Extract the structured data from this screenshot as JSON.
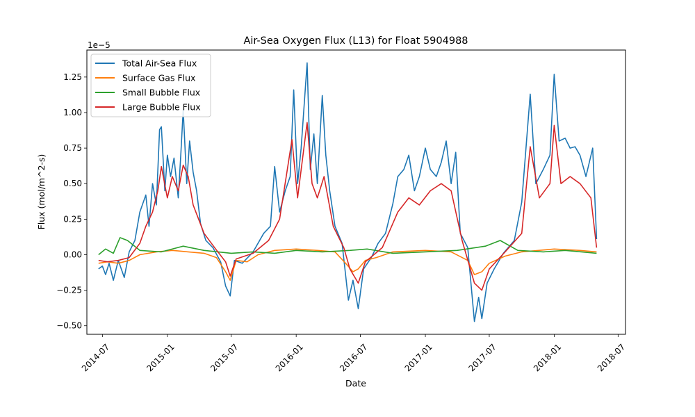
{
  "chart_data": {
    "type": "line",
    "title": "Air-Sea Oxygen Flux (L13) for Float 5904988",
    "xlabel": "Date",
    "ylabel": "Flux (mol/m^2-s)",
    "y_offset_label": "1e−5",
    "ylim": [
      -0.56,
      1.44
    ],
    "xlim": [
      "2014-05-18",
      "2018-07-22"
    ],
    "x_ticks": [
      "2014-07-01",
      "2015-01-01",
      "2015-07-01",
      "2016-01-01",
      "2016-07-01",
      "2017-01-01",
      "2017-07-01",
      "2018-01-01",
      "2018-07-01"
    ],
    "x_tick_labels": [
      "2014-07",
      "2015-01",
      "2015-07",
      "2016-01",
      "2016-07",
      "2017-01",
      "2017-07",
      "2018-01",
      "2018-07"
    ],
    "y_ticks": [
      -0.5,
      -0.25,
      0.0,
      0.25,
      0.5,
      0.75,
      1.0,
      1.25
    ],
    "y_tick_labels": [
      "−0.50",
      "−0.25",
      "0.00",
      "0.25",
      "0.50",
      "0.75",
      "1.00",
      "1.25"
    ],
    "legend_position": "upper-left",
    "grid": false,
    "series": [
      {
        "name": "Total Air-Sea Flux",
        "color": "#1f77b4",
        "points": [
          [
            "2014-06-20",
            -0.1
          ],
          [
            "2014-07-01",
            -0.08
          ],
          [
            "2014-07-10",
            -0.14
          ],
          [
            "2014-07-20",
            -0.06
          ],
          [
            "2014-08-01",
            -0.18
          ],
          [
            "2014-08-15",
            -0.04
          ],
          [
            "2014-09-01",
            -0.16
          ],
          [
            "2014-09-15",
            0.02
          ],
          [
            "2014-10-01",
            0.1
          ],
          [
            "2014-10-15",
            0.3
          ],
          [
            "2014-11-01",
            0.42
          ],
          [
            "2014-11-10",
            0.2
          ],
          [
            "2014-11-20",
            0.5
          ],
          [
            "2014-12-01",
            0.35
          ],
          [
            "2014-12-10",
            0.88
          ],
          [
            "2014-12-15",
            0.9
          ],
          [
            "2014-12-25",
            0.45
          ],
          [
            "2015-01-01",
            0.7
          ],
          [
            "2015-01-10",
            0.55
          ],
          [
            "2015-01-20",
            0.68
          ],
          [
            "2015-02-01",
            0.4
          ],
          [
            "2015-02-08",
            0.7
          ],
          [
            "2015-02-15",
            1.02
          ],
          [
            "2015-02-25",
            0.5
          ],
          [
            "2015-03-05",
            0.8
          ],
          [
            "2015-03-15",
            0.58
          ],
          [
            "2015-03-25",
            0.45
          ],
          [
            "2015-04-05",
            0.22
          ],
          [
            "2015-04-20",
            0.1
          ],
          [
            "2015-05-10",
            0.05
          ],
          [
            "2015-06-01",
            -0.05
          ],
          [
            "2015-06-15",
            -0.22
          ],
          [
            "2015-06-28",
            -0.29
          ],
          [
            "2015-07-10",
            -0.04
          ],
          [
            "2015-08-01",
            -0.06
          ],
          [
            "2015-09-01",
            0.02
          ],
          [
            "2015-10-01",
            0.15
          ],
          [
            "2015-10-20",
            0.2
          ],
          [
            "2015-11-01",
            0.62
          ],
          [
            "2015-11-15",
            0.3
          ],
          [
            "2015-12-01",
            0.45
          ],
          [
            "2015-12-15",
            0.55
          ],
          [
            "2015-12-25",
            1.16
          ],
          [
            "2016-01-05",
            0.5
          ],
          [
            "2016-01-15",
            0.75
          ],
          [
            "2016-02-01",
            1.35
          ],
          [
            "2016-02-10",
            0.6
          ],
          [
            "2016-02-20",
            0.85
          ],
          [
            "2016-03-01",
            0.5
          ],
          [
            "2016-03-15",
            1.12
          ],
          [
            "2016-03-25",
            0.7
          ],
          [
            "2016-04-05",
            0.45
          ],
          [
            "2016-04-20",
            0.2
          ],
          [
            "2016-05-10",
            0.08
          ],
          [
            "2016-05-28",
            -0.32
          ],
          [
            "2016-06-10",
            -0.18
          ],
          [
            "2016-06-25",
            -0.38
          ],
          [
            "2016-07-10",
            -0.1
          ],
          [
            "2016-08-01",
            -0.02
          ],
          [
            "2016-08-20",
            0.08
          ],
          [
            "2016-09-10",
            0.15
          ],
          [
            "2016-10-01",
            0.36
          ],
          [
            "2016-10-15",
            0.55
          ],
          [
            "2016-11-01",
            0.6
          ],
          [
            "2016-11-15",
            0.7
          ],
          [
            "2016-12-01",
            0.45
          ],
          [
            "2016-12-15",
            0.55
          ],
          [
            "2017-01-01",
            0.75
          ],
          [
            "2017-01-15",
            0.6
          ],
          [
            "2017-02-01",
            0.55
          ],
          [
            "2017-02-15",
            0.65
          ],
          [
            "2017-03-01",
            0.8
          ],
          [
            "2017-03-15",
            0.5
          ],
          [
            "2017-03-28",
            0.72
          ],
          [
            "2017-04-10",
            0.15
          ],
          [
            "2017-05-01",
            0.05
          ],
          [
            "2017-05-20",
            -0.47
          ],
          [
            "2017-06-01",
            -0.3
          ],
          [
            "2017-06-10",
            -0.45
          ],
          [
            "2017-06-25",
            -0.2
          ],
          [
            "2017-07-15",
            -0.1
          ],
          [
            "2017-08-10",
            0.01
          ],
          [
            "2017-09-10",
            0.1
          ],
          [
            "2017-10-01",
            0.37
          ],
          [
            "2017-10-25",
            1.13
          ],
          [
            "2017-11-10",
            0.5
          ],
          [
            "2017-12-01",
            0.6
          ],
          [
            "2017-12-20",
            0.7
          ],
          [
            "2018-01-01",
            1.27
          ],
          [
            "2018-01-15",
            0.8
          ],
          [
            "2018-02-01",
            0.82
          ],
          [
            "2018-02-15",
            0.75
          ],
          [
            "2018-03-01",
            0.76
          ],
          [
            "2018-03-15",
            0.7
          ],
          [
            "2018-04-01",
            0.55
          ],
          [
            "2018-04-20",
            0.75
          ],
          [
            "2018-05-01",
            0.11
          ]
        ]
      },
      {
        "name": "Surface Gas Flux",
        "color": "#ff7f0e",
        "points": [
          [
            "2014-06-20",
            -0.06
          ],
          [
            "2014-07-15",
            -0.05
          ],
          [
            "2014-08-15",
            -0.06
          ],
          [
            "2014-09-15",
            -0.04
          ],
          [
            "2014-10-15",
            0.0
          ],
          [
            "2014-12-01",
            0.02
          ],
          [
            "2015-01-15",
            0.03
          ],
          [
            "2015-03-01",
            0.02
          ],
          [
            "2015-04-15",
            0.01
          ],
          [
            "2015-05-20",
            -0.02
          ],
          [
            "2015-06-15",
            -0.12
          ],
          [
            "2015-06-28",
            -0.18
          ],
          [
            "2015-07-15",
            -0.04
          ],
          [
            "2015-08-15",
            -0.05
          ],
          [
            "2015-09-15",
            0.0
          ],
          [
            "2015-11-01",
            0.03
          ],
          [
            "2016-01-01",
            0.04
          ],
          [
            "2016-03-01",
            0.03
          ],
          [
            "2016-04-20",
            0.02
          ],
          [
            "2016-05-20",
            -0.06
          ],
          [
            "2016-06-10",
            -0.12
          ],
          [
            "2016-06-25",
            -0.1
          ],
          [
            "2016-07-15",
            -0.04
          ],
          [
            "2016-08-15",
            -0.02
          ],
          [
            "2016-10-01",
            0.02
          ],
          [
            "2017-01-01",
            0.03
          ],
          [
            "2017-03-15",
            0.02
          ],
          [
            "2017-05-01",
            -0.04
          ],
          [
            "2017-05-20",
            -0.14
          ],
          [
            "2017-06-10",
            -0.12
          ],
          [
            "2017-07-01",
            -0.06
          ],
          [
            "2017-08-15",
            -0.01
          ],
          [
            "2017-10-01",
            0.02
          ],
          [
            "2018-01-01",
            0.04
          ],
          [
            "2018-03-15",
            0.03
          ],
          [
            "2018-05-01",
            0.02
          ]
        ]
      },
      {
        "name": "Small Bubble Flux",
        "color": "#2ca02c",
        "points": [
          [
            "2014-06-20",
            0.0
          ],
          [
            "2014-07-10",
            0.04
          ],
          [
            "2014-08-01",
            0.01
          ],
          [
            "2014-08-20",
            0.12
          ],
          [
            "2014-09-10",
            0.1
          ],
          [
            "2014-10-15",
            0.03
          ],
          [
            "2014-12-15",
            0.02
          ],
          [
            "2015-02-15",
            0.06
          ],
          [
            "2015-04-15",
            0.03
          ],
          [
            "2015-07-01",
            0.01
          ],
          [
            "2015-09-01",
            0.02
          ],
          [
            "2015-11-01",
            0.01
          ],
          [
            "2016-01-01",
            0.03
          ],
          [
            "2016-03-15",
            0.02
          ],
          [
            "2016-06-01",
            0.03
          ],
          [
            "2016-07-20",
            0.04
          ],
          [
            "2016-10-01",
            0.01
          ],
          [
            "2017-01-01",
            0.02
          ],
          [
            "2017-04-01",
            0.03
          ],
          [
            "2017-06-20",
            0.06
          ],
          [
            "2017-08-01",
            0.1
          ],
          [
            "2017-09-20",
            0.03
          ],
          [
            "2017-12-01",
            0.02
          ],
          [
            "2018-02-01",
            0.03
          ],
          [
            "2018-05-01",
            0.01
          ]
        ]
      },
      {
        "name": "Large Bubble Flux",
        "color": "#d62728",
        "points": [
          [
            "2014-06-20",
            -0.04
          ],
          [
            "2014-07-15",
            -0.05
          ],
          [
            "2014-08-15",
            -0.04
          ],
          [
            "2014-09-15",
            -0.02
          ],
          [
            "2014-10-15",
            0.08
          ],
          [
            "2014-11-01",
            0.2
          ],
          [
            "2014-11-20",
            0.3
          ],
          [
            "2014-12-05",
            0.45
          ],
          [
            "2014-12-15",
            0.62
          ],
          [
            "2015-01-01",
            0.4
          ],
          [
            "2015-01-15",
            0.55
          ],
          [
            "2015-02-01",
            0.45
          ],
          [
            "2015-02-15",
            0.63
          ],
          [
            "2015-03-01",
            0.55
          ],
          [
            "2015-03-15",
            0.35
          ],
          [
            "2015-04-15",
            0.15
          ],
          [
            "2015-05-15",
            0.05
          ],
          [
            "2015-06-15",
            -0.05
          ],
          [
            "2015-06-28",
            -0.15
          ],
          [
            "2015-07-15",
            -0.03
          ],
          [
            "2015-09-01",
            0.01
          ],
          [
            "2015-10-15",
            0.1
          ],
          [
            "2015-11-15",
            0.25
          ],
          [
            "2015-12-20",
            0.81
          ],
          [
            "2016-01-05",
            0.4
          ],
          [
            "2016-02-01",
            0.93
          ],
          [
            "2016-02-15",
            0.5
          ],
          [
            "2016-03-01",
            0.4
          ],
          [
            "2016-03-20",
            0.55
          ],
          [
            "2016-04-15",
            0.2
          ],
          [
            "2016-05-15",
            0.05
          ],
          [
            "2016-06-01",
            -0.1
          ],
          [
            "2016-06-25",
            -0.2
          ],
          [
            "2016-07-15",
            -0.05
          ],
          [
            "2016-09-01",
            0.05
          ],
          [
            "2016-10-15",
            0.3
          ],
          [
            "2016-11-15",
            0.4
          ],
          [
            "2016-12-15",
            0.35
          ],
          [
            "2017-01-15",
            0.45
          ],
          [
            "2017-02-15",
            0.5
          ],
          [
            "2017-03-15",
            0.45
          ],
          [
            "2017-04-15",
            0.1
          ],
          [
            "2017-05-20",
            -0.2
          ],
          [
            "2017-06-10",
            -0.25
          ],
          [
            "2017-07-01",
            -0.1
          ],
          [
            "2017-08-15",
            0.02
          ],
          [
            "2017-10-01",
            0.15
          ],
          [
            "2017-10-25",
            0.76
          ],
          [
            "2017-11-20",
            0.4
          ],
          [
            "2017-12-20",
            0.5
          ],
          [
            "2018-01-01",
            0.91
          ],
          [
            "2018-01-20",
            0.5
          ],
          [
            "2018-02-15",
            0.55
          ],
          [
            "2018-03-15",
            0.5
          ],
          [
            "2018-04-15",
            0.4
          ],
          [
            "2018-05-01",
            0.05
          ]
        ]
      }
    ]
  }
}
